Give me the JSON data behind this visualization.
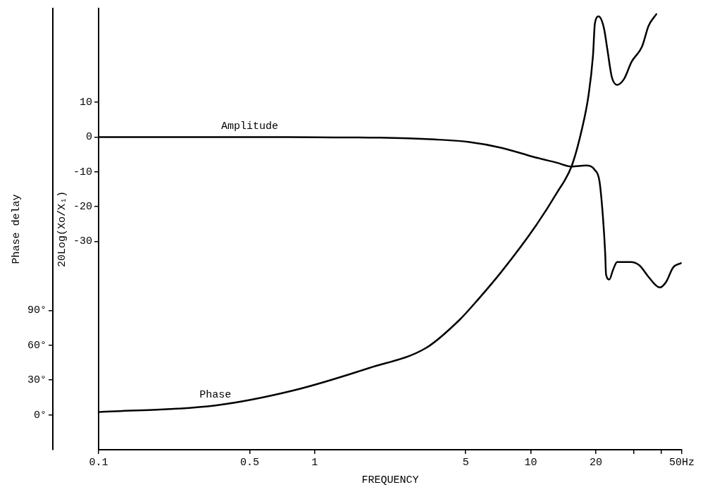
{
  "chart_data": {
    "type": "line",
    "xlabel": "FREQUENCY",
    "ylabel": "20Log(Xo/X₁)",
    "y2label": "Phase delay",
    "log": "x",
    "xlim": [
      0.1,
      50
    ],
    "xticks": [
      0.1,
      0.5,
      1,
      5,
      10,
      20,
      {
        "value": 30,
        "label": null
      },
      {
        "value": 40,
        "label": null
      },
      {
        "value": 50,
        "label": "50Hz"
      }
    ],
    "ylim": [
      -90,
      37
    ],
    "yticks": [
      10,
      0,
      -10,
      -20,
      -30
    ],
    "y2lim": [
      -30,
      350
    ],
    "y2ticks": [
      {
        "value": 0,
        "label": "0°"
      },
      {
        "value": 30,
        "label": "30°"
      },
      {
        "value": 60,
        "label": "60°"
      },
      {
        "value": 90,
        "label": "90°"
      }
    ],
    "grid": false,
    "legend": false,
    "marker": "none",
    "line_style": "solid",
    "series": [
      {
        "name": "Amplitude",
        "color": "#000000",
        "x": [
          0.1,
          0.5,
          1,
          2,
          3.58,
          5.12,
          7.31,
          10.4,
          13.2,
          15.45,
          18.0,
          19.8,
          20.8,
          21.6,
          22.1,
          22.3,
          23.1,
          24.0,
          25.1,
          29.0,
          31.9,
          35.1,
          39.5,
          42.4,
          45.5,
          49.5
        ],
        "values": [
          0,
          0,
          -0.1,
          -0.2,
          -0.7,
          -1.4,
          -3.1,
          -5.8,
          -7.4,
          -8.5,
          -8.2,
          -9.5,
          -12.8,
          -23.5,
          -33.6,
          -39.6,
          -41.0,
          -38.3,
          -36.0,
          -36.0,
          -37.0,
          -40.3,
          -43.3,
          -41.6,
          -37.6,
          -36.3
        ]
      },
      {
        "name": "Phase",
        "color": "#000000",
        "axis": "y2",
        "x": [
          0.1,
          0.347,
          0.789,
          1.79,
          3.28,
          4.69,
          5.63,
          7.31,
          10.4,
          13.2,
          15.45,
          17.2,
          18.5,
          19.4,
          19.8,
          20.6,
          21.8,
          22.6,
          23.7,
          25.1,
          27.0,
          29.3,
          32.7,
          35.1,
          38.1
        ],
        "values": [
          2.4,
          8.1,
          20.8,
          40.4,
          57.7,
          82,
          98.2,
          123.2,
          161.2,
          191.2,
          214.2,
          245.2,
          275.2,
          309.2,
          337.1,
          343.1,
          333.1,
          315.1,
          291.1,
          284.2,
          289.2,
          304.2,
          317.1,
          335.1,
          345.1
        ]
      }
    ]
  }
}
